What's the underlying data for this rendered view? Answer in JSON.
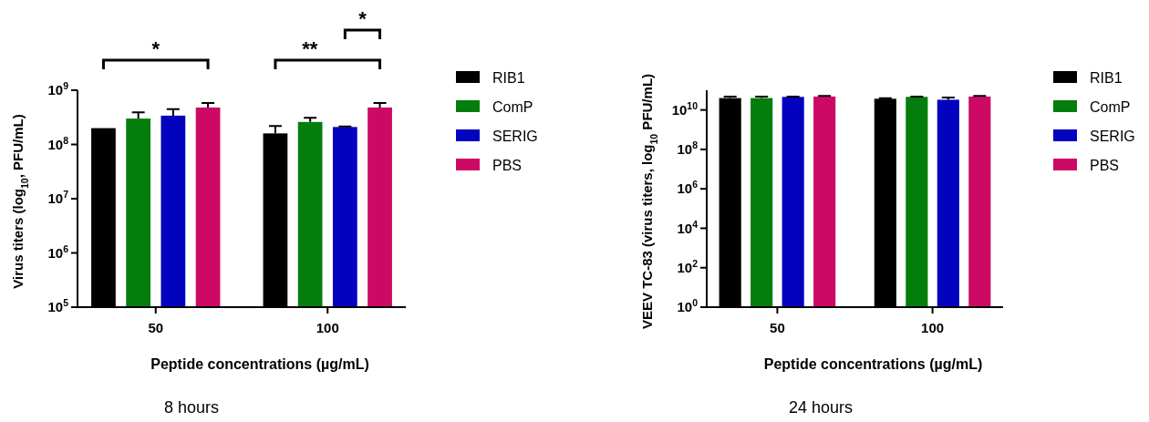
{
  "chart_data": [
    {
      "type": "bar",
      "subtitle": "8 hours",
      "xlabel": "Peptide concentrations (µg/mL)",
      "ylabel": "Virus titers (log$_{10}$, PFU/mL)",
      "categories": [
        "50",
        "100"
      ],
      "log": true,
      "ylim": [
        100000,
        1000000000
      ],
      "yticks": [
        {
          "value": 100000,
          "label": "10$^{5}$"
        },
        {
          "value": 1000000,
          "label": "10$^{6}$"
        },
        {
          "value": 10000000,
          "label": "10$^{7}$"
        },
        {
          "value": 100000000,
          "label": "10$^{8}$"
        },
        {
          "value": 1000000000,
          "label": "10$^{9}$"
        }
      ],
      "legend": "right",
      "annotations": [
        "*",
        "**",
        "*"
      ],
      "series": [
        {
          "name": "RIB1",
          "color": "#000000",
          "values": [
            200000000,
            160000000
          ],
          "errors": [
            null,
            60000000
          ]
        },
        {
          "name": "ComP",
          "color": "#037d0b",
          "values": [
            300000000,
            260000000
          ],
          "errors": [
            90000000,
            50000000
          ]
        },
        {
          "name": "SERIG",
          "color": "#0202bf",
          "values": [
            340000000,
            210000000
          ],
          "errors": [
            110000000,
            5000000
          ]
        },
        {
          "name": "PBS",
          "color": "#cc0a66",
          "values": [
            480000000,
            480000000
          ],
          "errors": [
            100000000,
            100000000
          ]
        }
      ]
    },
    {
      "type": "bar",
      "subtitle": "24 hours",
      "xlabel": "Peptide concentrations (µg/mL)",
      "ylabel": "VEEV TC-83 (virus titers, log$_{10}$ PFU/mL)",
      "categories": [
        "50",
        "100"
      ],
      "log": true,
      "ylim": [
        1,
        100000000000
      ],
      "yticks": [
        {
          "value": 1,
          "label": "10$^{0}$"
        },
        {
          "value": 100,
          "label": "10$^{2}$"
        },
        {
          "value": 10000,
          "label": "10$^{4}$"
        },
        {
          "value": 1000000,
          "label": "10$^{6}$"
        },
        {
          "value": 100000000,
          "label": "10$^{8}$"
        },
        {
          "value": 10000000000,
          "label": "10$^{10}$"
        }
      ],
      "legend": "right",
      "series": [
        {
          "name": "RIB1",
          "color": "#000000",
          "values": [
            40000000000,
            37000000000
          ],
          "errors": [
            8000000000,
            2000000000
          ]
        },
        {
          "name": "ComP",
          "color": "#037d0b",
          "values": [
            40000000000,
            46000000000
          ],
          "errors": [
            8000000000,
            2000000000
          ]
        },
        {
          "name": "SERIG",
          "color": "#0202bf",
          "values": [
            46000000000,
            33000000000
          ],
          "errors": [
            2000000000,
            10000000000
          ]
        },
        {
          "name": "PBS",
          "color": "#cc0a66",
          "values": [
            48000000000,
            48000000000
          ],
          "errors": [
            3000000000,
            3000000000
          ]
        }
      ]
    }
  ]
}
